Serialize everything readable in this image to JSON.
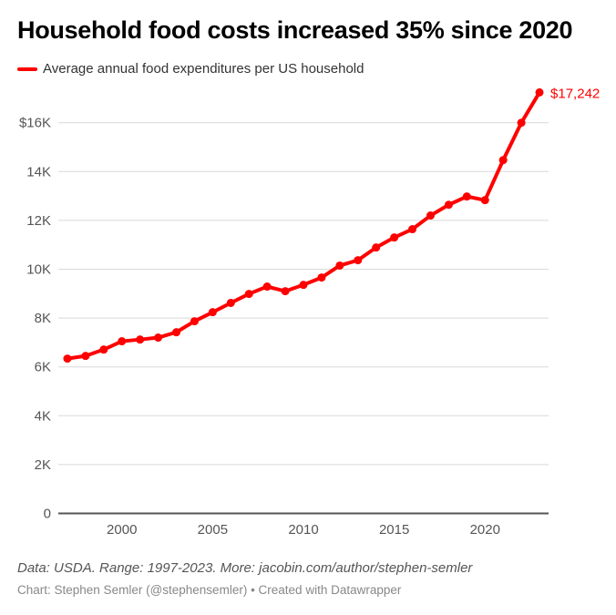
{
  "title": "Household food costs increased 35% since 2020",
  "footer": {
    "note": "Data: USDA. Range: 1997-2023. More: jacobin.com/author/stephen-semler",
    "credit": "Chart: Stephen Semler (@stephensemler) • Created with Datawrapper"
  },
  "chart_data": {
    "type": "line",
    "title": "Household food costs increased 35% since 2020",
    "legend_placement": "top-left",
    "grid": true,
    "x": [
      1997,
      1998,
      1999,
      2000,
      2001,
      2002,
      2003,
      2004,
      2005,
      2006,
      2007,
      2008,
      2009,
      2010,
      2011,
      2012,
      2013,
      2014,
      2015,
      2016,
      2017,
      2018,
      2019,
      2020,
      2021,
      2022,
      2023
    ],
    "series": [
      {
        "name": "Average annual food expenditures per US household",
        "color": "#ff0000",
        "values": [
          6340,
          6450,
          6710,
          7050,
          7120,
          7200,
          7420,
          7870,
          8240,
          8620,
          8990,
          9290,
          9100,
          9360,
          9660,
          10150,
          10370,
          10890,
          11300,
          11640,
          12200,
          12640,
          12980,
          12830,
          14470,
          16000,
          17242
        ]
      }
    ],
    "end_label": "$17,242",
    "xlim": [
      1996.5,
      2023.5
    ],
    "ylim": [
      0,
      17242
    ],
    "y_ticks": [
      0,
      2000,
      4000,
      6000,
      8000,
      10000,
      12000,
      14000,
      16000
    ],
    "y_tick_labels": [
      "0",
      "2K",
      "4K",
      "6K",
      "8K",
      "10K",
      "12K",
      "14K",
      "$16K"
    ],
    "x_ticks": [
      2000,
      2005,
      2010,
      2015,
      2020
    ],
    "x_tick_labels": [
      "2000",
      "2005",
      "2010",
      "2015",
      "2020"
    ]
  }
}
